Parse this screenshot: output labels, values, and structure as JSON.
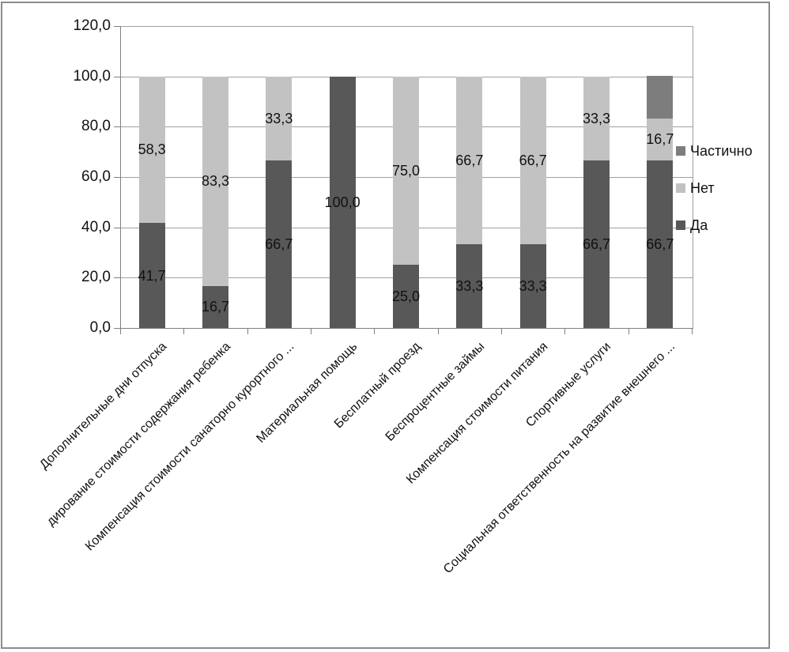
{
  "chart_data": {
    "type": "bar",
    "stacked": true,
    "title": "",
    "categories": [
      "Дополнительные дни отпуска",
      "дирование стоимости содержания ребенка",
      "Компенсация стоимости санаторно курортного ...",
      "Материальная помощь",
      "Бесплатный проезд",
      "Беспроцентные займы",
      "Компенсация стоимости питания",
      "Спортивные услуги",
      "Социальная ответственность на развитие внешнего ..."
    ],
    "series": [
      {
        "name": "Да",
        "color": "#585858",
        "values": [
          41.7,
          16.7,
          66.7,
          100.0,
          25.0,
          33.3,
          33.3,
          66.7,
          66.7
        ],
        "labels": [
          "41,7",
          "16,7",
          "66,7",
          "100,0",
          "25,0",
          "33,3",
          "33,3",
          "66,7",
          "66,7"
        ]
      },
      {
        "name": "Нет",
        "color": "#c2c2c2",
        "values": [
          58.3,
          83.3,
          33.3,
          0,
          75.0,
          66.7,
          66.7,
          33.3,
          16.7
        ],
        "labels": [
          "58,3",
          "83,3",
          "33,3",
          "",
          "75,0",
          "66,7",
          "66,7",
          "33,3",
          "16,7"
        ]
      },
      {
        "name": "Частично",
        "color": "#7d7d7d",
        "values": [
          0,
          0,
          0,
          0,
          0,
          0,
          0,
          0,
          16.7
        ],
        "labels": [
          "",
          "",
          "",
          "",
          "",
          "",
          "",
          "",
          ""
        ]
      }
    ],
    "legend": {
      "position": "right",
      "entries": [
        "Частично",
        "Нет",
        "Да"
      ]
    },
    "y_axis": {
      "ticks": [
        0,
        20,
        40,
        60,
        80,
        100,
        120
      ],
      "tick_labels": [
        "0,0",
        "20,0",
        "40,0",
        "60,0",
        "80,0",
        "100,0",
        "120,0"
      ],
      "ylim": [
        0,
        120
      ]
    },
    "grid": true
  },
  "colors": {
    "background": "#ffffff",
    "frame_border": "#8c8c8c",
    "gridline": "#a0a0a0",
    "axis": "#808080",
    "text": "#111111"
  }
}
